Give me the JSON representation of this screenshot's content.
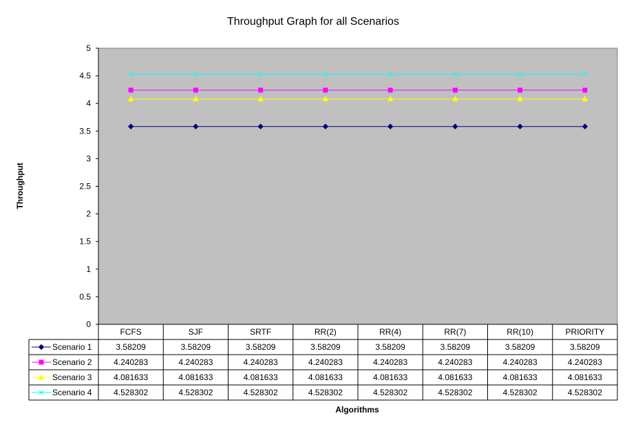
{
  "chart_data": {
    "type": "line",
    "title": "Throughput Graph for all Scenarios",
    "xlabel": "Algorithms",
    "ylabel": "Throughput",
    "categories": [
      "FCFS",
      "SJF",
      "SRTF",
      "RR(2)",
      "RR(4)",
      "RR(7)",
      "RR(10)",
      "PRIORITY"
    ],
    "ylim": [
      0,
      5
    ],
    "yticks": [
      "0",
      "0.5",
      "1",
      "1.5",
      "2",
      "2.5",
      "3",
      "3.5",
      "4",
      "4.5",
      "5"
    ],
    "grid": false,
    "plot_background": "#C0C0C0",
    "legend": "data table below the plot",
    "series": [
      {
        "name": "Scenario 1",
        "color": "#000080",
        "marker": "diamond",
        "values": [
          3.58209,
          3.58209,
          3.58209,
          3.58209,
          3.58209,
          3.58209,
          3.58209,
          3.58209
        ],
        "labels": [
          "3.58209",
          "3.58209",
          "3.58209",
          "3.58209",
          "3.58209",
          "3.58209",
          "3.58209",
          "3.58209"
        ]
      },
      {
        "name": "Scenario 2",
        "color": "#FF00FF",
        "marker": "square",
        "values": [
          4.240283,
          4.240283,
          4.240283,
          4.240283,
          4.240283,
          4.240283,
          4.240283,
          4.240283
        ],
        "labels": [
          "4.240283",
          "4.240283",
          "4.240283",
          "4.240283",
          "4.240283",
          "4.240283",
          "4.240283",
          "4.240283"
        ]
      },
      {
        "name": "Scenario 3",
        "color": "#FFFF00",
        "marker": "triangle",
        "values": [
          4.081633,
          4.081633,
          4.081633,
          4.081633,
          4.081633,
          4.081633,
          4.081633,
          4.081633
        ],
        "labels": [
          "4.081633",
          "4.081633",
          "4.081633",
          "4.081633",
          "4.081633",
          "4.081633",
          "4.081633",
          "4.081633"
        ]
      },
      {
        "name": "Scenario 4",
        "color": "#00FFFF",
        "marker": "x",
        "values": [
          4.528302,
          4.528302,
          4.528302,
          4.528302,
          4.528302,
          4.528302,
          4.528302,
          4.528302
        ],
        "labels": [
          "4.528302",
          "4.528302",
          "4.528302",
          "4.528302",
          "4.528302",
          "4.528302",
          "4.528302",
          "4.528302"
        ]
      }
    ]
  }
}
